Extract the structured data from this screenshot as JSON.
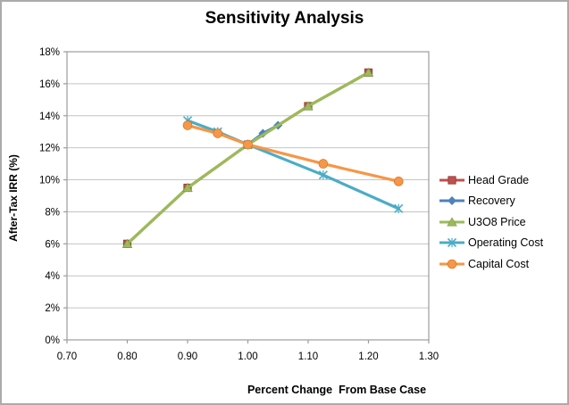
{
  "chart_data": {
    "type": "line",
    "title": "Sensitivity Analysis",
    "xlabel": "Percent Change  From Base Case",
    "ylabel": "After-Tax IRR (%)",
    "xlim": [
      0.7,
      1.3
    ],
    "ylim": [
      0,
      18
    ],
    "x_tick_labels": [
      "0.70",
      "0.80",
      "0.90",
      "1.00",
      "1.10",
      "1.20",
      "1.30"
    ],
    "y_tick_labels": [
      "0%",
      "2%",
      "4%",
      "6%",
      "8%",
      "10%",
      "12%",
      "14%",
      "16%",
      "18%"
    ],
    "grid": "horizontal-only",
    "legend_position": "right",
    "series": [
      {
        "name": "Head Grade",
        "color": "#C0504D",
        "marker": "square",
        "x": [
          0.8,
          0.9,
          1.0,
          1.1,
          1.2
        ],
        "y": [
          6.0,
          9.5,
          12.2,
          14.6,
          16.7
        ]
      },
      {
        "name": "Recovery",
        "color": "#4F81BD",
        "marker": "diamond",
        "x": [
          1.0,
          1.025,
          1.05
        ],
        "y": [
          12.2,
          12.9,
          13.4
        ]
      },
      {
        "name": "U3O8 Price",
        "color": "#9BBB59",
        "marker": "triangle",
        "x": [
          0.8,
          0.9,
          1.0,
          1.1,
          1.2
        ],
        "y": [
          6.0,
          9.5,
          12.2,
          14.6,
          16.7
        ]
      },
      {
        "name": "Operating Cost",
        "color": "#4BACC6",
        "marker": "x",
        "x": [
          0.9,
          0.95,
          1.0,
          1.125,
          1.25
        ],
        "y": [
          13.7,
          13.0,
          12.2,
          10.3,
          8.2
        ]
      },
      {
        "name": "Capital Cost",
        "color": "#F79646",
        "marker": "circle",
        "x": [
          0.9,
          0.95,
          1.0,
          1.125,
          1.25
        ],
        "y": [
          13.4,
          12.9,
          12.2,
          11.0,
          9.9
        ]
      }
    ]
  },
  "frame": {
    "background": "#ffffff",
    "border_color": "#ababab",
    "axis_color": "#9c9c9c",
    "grid_color": "#c4c4c4",
    "text_color": "#000000"
  }
}
